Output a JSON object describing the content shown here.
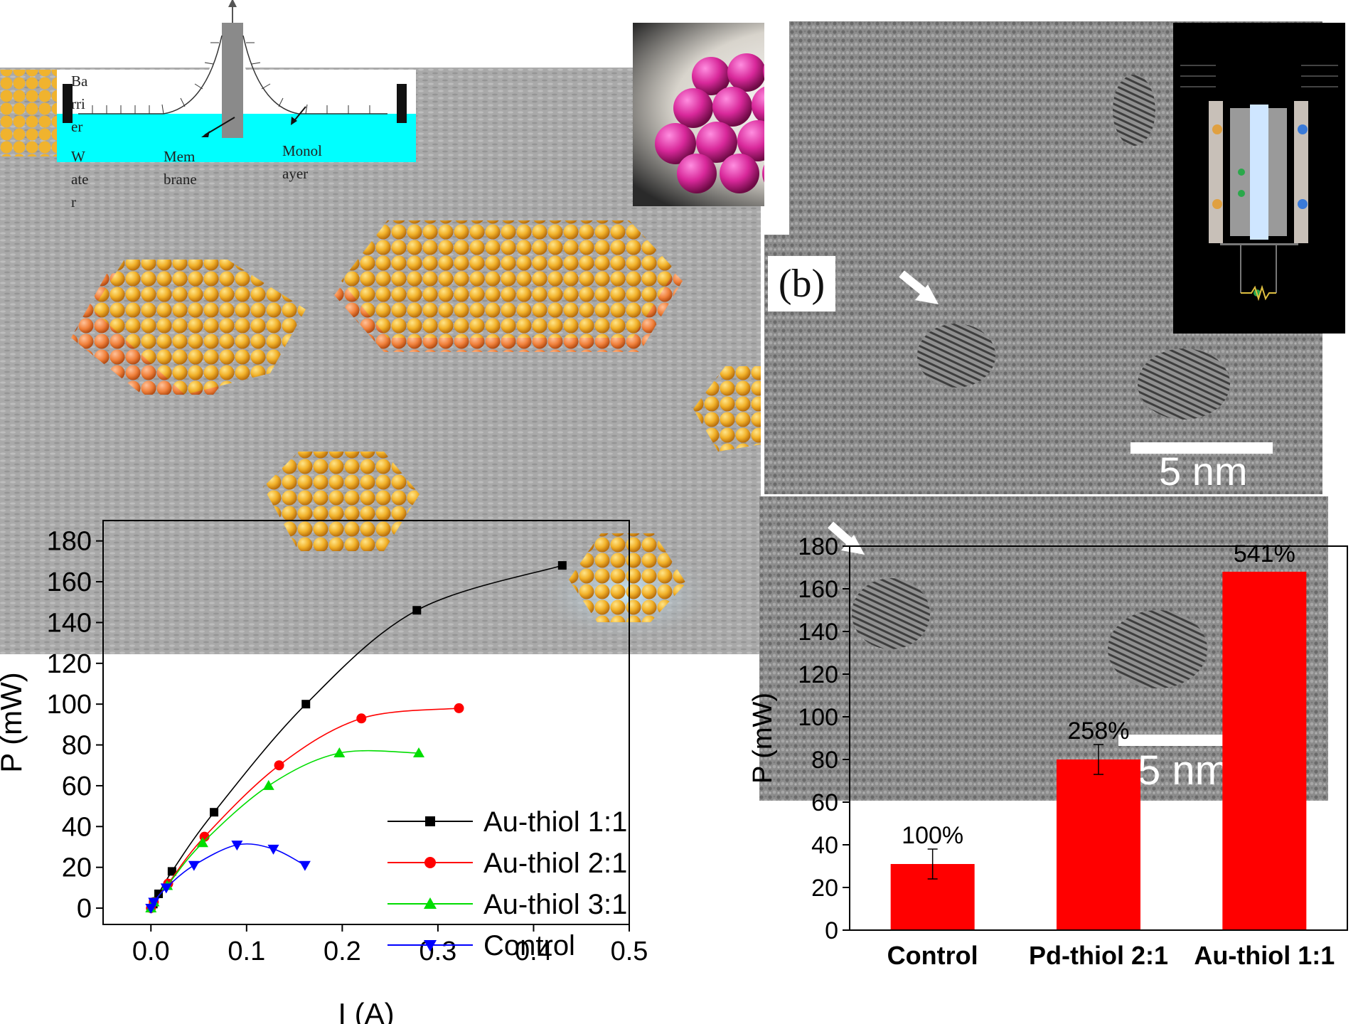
{
  "panel_label": "(b)",
  "scale_bar_label": "5 nm",
  "trough_labels": {
    "barrier": "Ba\nrri\ner",
    "water": "W\nate\nr",
    "membrane": "Mem\nbrane",
    "monolayer": "Monol\nayer"
  },
  "chart_data": [
    {
      "type": "scatter",
      "xlabel": "I (A)",
      "ylabel": "P (mW)",
      "xlim": [
        -0.05,
        0.5
      ],
      "ylim": [
        -8,
        190
      ],
      "x_ticks": [
        "0.0",
        "0.1",
        "0.2",
        "0.3",
        "0.4",
        "0.5"
      ],
      "y_ticks": [
        "0",
        "20",
        "40",
        "60",
        "80",
        "100",
        "120",
        "140",
        "160",
        "180"
      ],
      "legend_position": "bottom-right",
      "series": [
        {
          "name": "Au-thiol 1:1",
          "color": "#000000",
          "marker": "square",
          "x": [
            0.0,
            0.0025,
            0.008,
            0.022,
            0.066,
            0.162,
            0.278,
            0.43
          ],
          "y": [
            0,
            2,
            7,
            18,
            47,
            100,
            146,
            168
          ]
        },
        {
          "name": "Au-thiol 2:1",
          "color": "#ff0000",
          "marker": "circle",
          "x": [
            0.0,
            0.003,
            0.018,
            0.056,
            0.134,
            0.22,
            0.322
          ],
          "y": [
            0,
            3,
            12,
            35,
            70,
            93,
            98
          ]
        },
        {
          "name": "Au-thiol 3:1",
          "color": "#00dd00",
          "marker": "triangle-up",
          "x": [
            0.0,
            0.003,
            0.017,
            0.054,
            0.123,
            0.197,
            0.28
          ],
          "y": [
            0,
            3,
            11,
            32,
            60,
            76,
            76
          ]
        },
        {
          "name": "Control",
          "color": "#0000ff",
          "marker": "triangle-down",
          "x": [
            0.0,
            0.003,
            0.016,
            0.045,
            0.09,
            0.128,
            0.161
          ],
          "y": [
            0,
            3,
            10,
            21,
            31,
            29,
            21
          ]
        }
      ]
    },
    {
      "type": "bar",
      "ylabel": "P (mW)",
      "ylim": [
        0,
        180
      ],
      "y_ticks": [
        "0",
        "20",
        "40",
        "60",
        "80",
        "100",
        "120",
        "140",
        "160",
        "180"
      ],
      "categories": [
        "Control",
        "Pd-thiol 2:1",
        "Au-thiol 1:1"
      ],
      "values": [
        31,
        80,
        168
      ],
      "errors": [
        7,
        7,
        0
      ],
      "labels": [
        "100%",
        "258%",
        "541%"
      ],
      "bar_color": "#ff0000"
    }
  ]
}
